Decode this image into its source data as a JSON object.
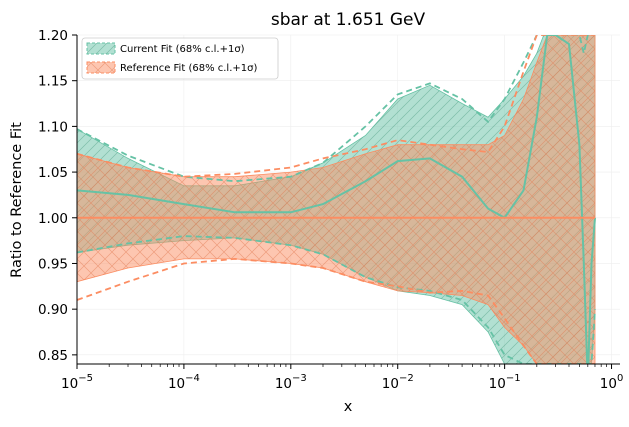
{
  "chart_data": {
    "type": "line",
    "title": "sbar at 1.651 GeV",
    "xlabel": "x",
    "ylabel": "Ratio to Reference Fit",
    "xscale": "log",
    "xlim": [
      1e-05,
      1.2
    ],
    "ylim": [
      0.84,
      1.2
    ],
    "grid": true,
    "legend_position": "top-left",
    "x_ticks": [
      {
        "value": 1e-05,
        "base": "10",
        "exp": "−5"
      },
      {
        "value": 0.0001,
        "base": "10",
        "exp": "−4"
      },
      {
        "value": 0.001,
        "base": "10",
        "exp": "−3"
      },
      {
        "value": 0.01,
        "base": "10",
        "exp": "−2"
      },
      {
        "value": 0.1,
        "base": "10",
        "exp": "−1"
      },
      {
        "value": 1,
        "base": "10",
        "exp": "0"
      }
    ],
    "y_ticks": [
      {
        "value": 0.85,
        "label": "0.85"
      },
      {
        "value": 0.9,
        "label": "0.90"
      },
      {
        "value": 0.95,
        "label": "0.95"
      },
      {
        "value": 1.0,
        "label": "1.00"
      },
      {
        "value": 1.05,
        "label": "1.05"
      },
      {
        "value": 1.1,
        "label": "1.10"
      },
      {
        "value": 1.15,
        "label": "1.15"
      },
      {
        "value": 1.2,
        "label": "1.20"
      }
    ],
    "series": [
      {
        "name": "Current Fit (68% c.l.+1σ)",
        "color": "#66c2a5",
        "fill": "#66c2a5",
        "hatch": "diagonal",
        "x": [
          1e-05,
          3e-05,
          0.0001,
          0.0003,
          0.001,
          0.002,
          0.005,
          0.01,
          0.02,
          0.04,
          0.07,
          0.1,
          0.15,
          0.2,
          0.25,
          0.3,
          0.4,
          0.5,
          0.55,
          0.6,
          0.65,
          0.7
        ],
        "central": [
          1.03,
          1.025,
          1.015,
          1.006,
          1.006,
          1.015,
          1.04,
          1.062,
          1.065,
          1.045,
          1.01,
          1.0,
          1.03,
          1.11,
          1.2,
          1.2,
          1.19,
          1.08,
          0.95,
          0.82,
          0.95,
          1.0
        ],
        "upper": [
          1.097,
          1.065,
          1.035,
          1.035,
          1.045,
          1.06,
          1.09,
          1.13,
          1.145,
          1.125,
          1.11,
          1.13,
          1.155,
          1.18,
          1.21,
          1.21,
          1.21,
          1.21,
          1.2,
          1.2,
          1.2,
          1.2
        ],
        "lower": [
          0.962,
          0.97,
          0.975,
          0.978,
          0.97,
          0.96,
          0.935,
          0.92,
          0.915,
          0.905,
          0.875,
          0.84,
          0.84,
          0.84,
          0.84,
          0.84,
          0.84,
          0.84,
          0.84,
          0.84,
          0.84,
          0.9
        ],
        "dashed_upper": [
          1.097,
          1.068,
          1.045,
          1.04,
          1.045,
          1.06,
          1.1,
          1.135,
          1.147,
          1.13,
          1.105,
          1.13,
          1.17,
          1.2,
          1.2,
          1.2,
          1.2,
          1.2,
          1.18,
          1.2,
          1.2,
          1.2
        ],
        "dashed_lower": [
          0.962,
          0.972,
          0.98,
          0.978,
          0.97,
          0.96,
          0.935,
          0.924,
          0.92,
          0.91,
          0.88,
          0.85,
          0.84,
          0.84,
          0.84,
          0.84,
          0.84,
          0.84,
          0.84,
          0.84,
          0.84,
          0.9
        ]
      },
      {
        "name": "Reference Fit (68% c.l.+1σ)",
        "color": "#fc8d62",
        "fill": "#fc8d62",
        "hatch": "cross",
        "x": [
          1e-05,
          3e-05,
          0.0001,
          0.0003,
          0.001,
          0.002,
          0.005,
          0.01,
          0.02,
          0.04,
          0.07,
          0.1,
          0.15,
          0.2,
          0.25,
          0.3,
          0.4,
          0.5,
          0.55,
          0.6,
          0.65,
          0.7
        ],
        "central": [
          1.0,
          1.0,
          1.0,
          1.0,
          1.0,
          1.0,
          1.0,
          1.0,
          1.0,
          1.0,
          1.0,
          1.0,
          1.0,
          1.0,
          1.0,
          1.0,
          1.0,
          1.0,
          1.0,
          1.0,
          1.0,
          1.0
        ],
        "upper": [
          1.07,
          1.055,
          1.045,
          1.045,
          1.05,
          1.055,
          1.07,
          1.08,
          1.08,
          1.08,
          1.08,
          1.09,
          1.13,
          1.17,
          1.2,
          1.2,
          1.2,
          1.2,
          1.2,
          1.2,
          1.2,
          1.2
        ],
        "lower": [
          0.93,
          0.945,
          0.955,
          0.955,
          0.95,
          0.945,
          0.93,
          0.92,
          0.918,
          0.915,
          0.905,
          0.88,
          0.86,
          0.84,
          0.84,
          0.84,
          0.84,
          0.84,
          0.84,
          0.84,
          0.84,
          0.84
        ],
        "dashed_upper": [
          1.07,
          1.055,
          1.045,
          1.048,
          1.055,
          1.065,
          1.075,
          1.085,
          1.08,
          1.075,
          1.072,
          1.1,
          1.16,
          1.2,
          1.2,
          1.2,
          1.2,
          1.2,
          1.2,
          1.2,
          1.2,
          1.2
        ],
        "dashed_lower": [
          0.91,
          0.93,
          0.95,
          0.955,
          0.95,
          0.945,
          0.93,
          0.925,
          0.918,
          0.92,
          0.915,
          0.89,
          0.86,
          0.84,
          0.84,
          0.84,
          0.84,
          0.84,
          0.84,
          0.84,
          0.84,
          0.84
        ]
      }
    ]
  }
}
